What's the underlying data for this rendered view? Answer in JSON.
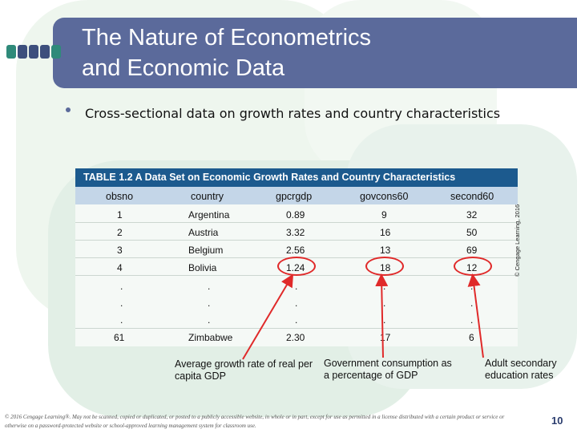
{
  "slide": {
    "title_line1": "The Nature of Econometrics",
    "title_line2": "and Economic Data",
    "bullet": "Cross-sectional data on growth rates and country characteristics",
    "page_number": "10",
    "footer": "© 2016 Cengage Learning®. May not be scanned, copied or duplicated, or posted to a publicly accessible website, in whole or in part, except for use as permitted in a license distributed with a certain product or service or otherwise on a password-protected website or school-approved learning management system for classroom use."
  },
  "table": {
    "caption": "TABLE 1.2  A Data Set on Economic Growth Rates and Country Characteristics",
    "columns": [
      "obsno",
      "country",
      "gpcrgdp",
      "govcons60",
      "second60"
    ],
    "rows": [
      [
        "1",
        "Argentina",
        "0.89",
        "9",
        "32"
      ],
      [
        "2",
        "Austria",
        "3.32",
        "16",
        "50"
      ],
      [
        "3",
        "Belgium",
        "2.56",
        "13",
        "69"
      ],
      [
        "4",
        "Bolivia",
        "1.24",
        "18",
        "12"
      ],
      [
        ".",
        ".",
        ".",
        ".",
        "."
      ],
      [
        ".",
        ".",
        ".",
        ".",
        "."
      ],
      [
        ".",
        ".",
        ".",
        ".",
        "."
      ],
      [
        "61",
        "Zimbabwe",
        "2.30",
        "17",
        "6"
      ]
    ],
    "side_copyright": "© Cengage Learning, 2016"
  },
  "annotations": {
    "gpcrgdp": "Average growth rate of real per capita GDP",
    "govcons60": "Government consumption as a percentage of GDP",
    "second60": "Adult secondary education rates"
  },
  "colors": {
    "title_bar": "#5b6a9b",
    "table_caption": "#1c5a8e",
    "table_header": "#c4d6e8",
    "annotation_arrows": "#e02a2a"
  }
}
